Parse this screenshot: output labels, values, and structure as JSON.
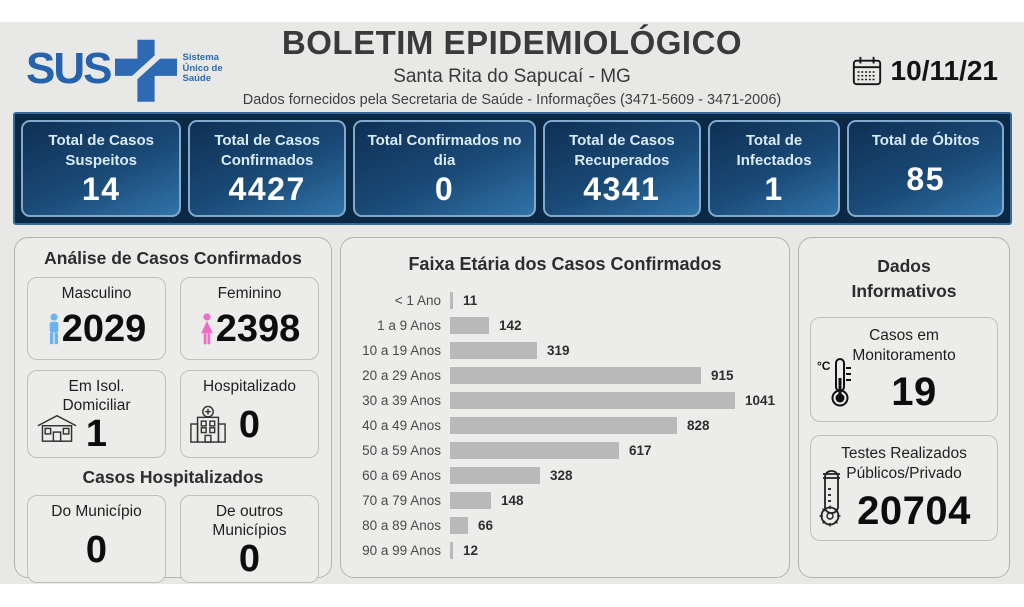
{
  "header": {
    "logo_text": "SUS",
    "logo_tagline": "Sistema Único de Saúde",
    "title": "BOLETIM EPIDEMIOLÓGICO",
    "subtitle": "Santa Rita do Sapucaí - MG",
    "info_line": "Dados fornecidos pela Secretaria de Saúde - Informações (3471-5609 - 3471-2006)",
    "date": "10/11/21"
  },
  "stats": [
    {
      "label": "Total de Casos Suspeitos",
      "value": "14"
    },
    {
      "label": "Total de Casos Confirmados",
      "value": "4427"
    },
    {
      "label": "Total Confirmados no dia",
      "value": "0"
    },
    {
      "label": "Total de Casos Recuperados",
      "value": "4341"
    },
    {
      "label": "Total de Infectados",
      "value": "1"
    },
    {
      "label": "Total de Óbitos",
      "value": "85"
    }
  ],
  "analysis": {
    "title": "Análise de Casos Confirmados",
    "male": {
      "label": "Masculino",
      "value": "2029",
      "icon": "male-icon"
    },
    "female": {
      "label": "Feminino",
      "value": "2398",
      "icon": "female-icon"
    },
    "isolation": {
      "label": "Em Isol. Domiciliar",
      "value": "1",
      "icon": "house-icon"
    },
    "hospitalized": {
      "label": "Hospitalizado",
      "value": "0",
      "icon": "hospital-icon"
    },
    "hospitalized_title": "Casos Hospitalizados",
    "municipality": {
      "label": "Do Município",
      "value": "0"
    },
    "other_municipalities": {
      "label": "De outros Municípios",
      "value": "0"
    }
  },
  "chart_data": {
    "type": "bar",
    "orientation": "horizontal",
    "title": "Faixa Etária dos Casos Confirmados",
    "categories": [
      "< 1 Ano",
      "1 a 9 Anos",
      "10 a 19 Anos",
      "20 a 29 Anos",
      "30 a 39 Anos",
      "40 a 49 Anos",
      "50 a 59 Anos",
      "60 a 69 Anos",
      "70 a 79 Anos",
      "80 a 89 Anos",
      "90 a 99 Anos"
    ],
    "values": [
      11,
      142,
      319,
      915,
      1041,
      828,
      617,
      328,
      148,
      66,
      12
    ],
    "xlim": [
      0,
      1041
    ],
    "grid": false,
    "legend": false,
    "bar_color": "#b9b9b9"
  },
  "info_panel": {
    "title": "Dados Informativos",
    "monitoring": {
      "label": "Casos em Monitoramento",
      "value": "19",
      "icon": "thermometer-icon"
    },
    "tests": {
      "label": "Testes Realizados Públicos/Privado",
      "value": "20704",
      "icon": "test-tube-icon"
    }
  },
  "colors": {
    "band_background": "#e8e8e6",
    "stats_bar_background": "#0b2845",
    "stat_card_gradient": [
      "#0f3054",
      "#3173a9"
    ],
    "stat_card_border": "#7fa9cd",
    "chart_bar": "#b9b9b9",
    "logo_blue": "#2563ad",
    "male_icon": "#6db3f2",
    "female_icon": "#f06ec7"
  }
}
